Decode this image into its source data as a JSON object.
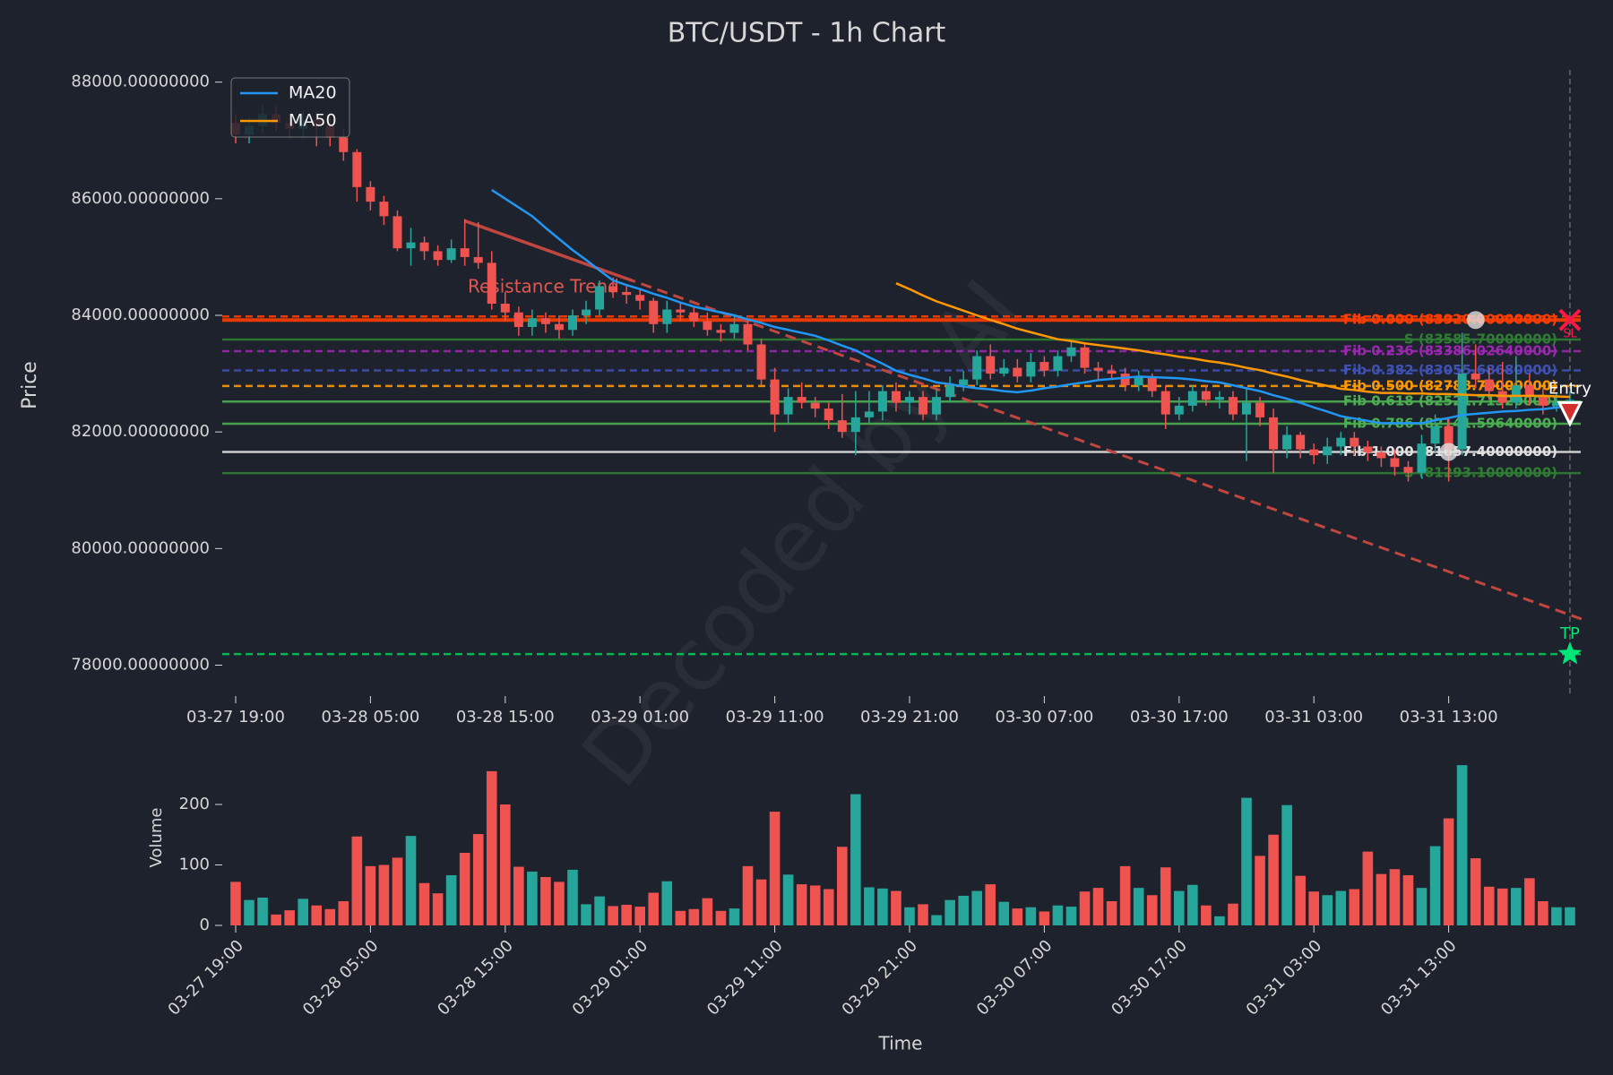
{
  "chart_data": [
    {
      "type": "candlestick",
      "title": "BTC/USDT - 1h Chart",
      "ylabel": "Price",
      "watermark": "Decoded by AI",
      "categories": [
        "03-27 19:00",
        null,
        null,
        null,
        null,
        null,
        null,
        null,
        null,
        null,
        "03-28 05:00",
        null,
        null,
        null,
        null,
        null,
        null,
        null,
        null,
        null,
        "03-28 15:00",
        null,
        null,
        null,
        null,
        null,
        null,
        null,
        null,
        null,
        "03-29 01:00",
        null,
        null,
        null,
        null,
        null,
        null,
        null,
        null,
        null,
        "03-29 11:00",
        null,
        null,
        null,
        null,
        null,
        null,
        null,
        null,
        null,
        "03-29 21:00",
        null,
        null,
        null,
        null,
        null,
        null,
        null,
        null,
        null,
        "03-30 07:00",
        null,
        null,
        null,
        null,
        null,
        null,
        null,
        null,
        null,
        "03-30 17:00",
        null,
        null,
        null,
        null,
        null,
        null,
        null,
        null,
        null,
        "03-31 03:00",
        null,
        null,
        null,
        null,
        null,
        null,
        null,
        null,
        null,
        "03-31 13:00",
        null,
        null,
        null,
        null,
        null,
        null,
        null,
        null,
        null
      ],
      "open": [
        87300,
        87100,
        87250,
        87450,
        87300,
        87200,
        87350,
        87250,
        87050,
        86800,
        86200,
        85950,
        85700,
        85150,
        85250,
        85100,
        84950,
        85150,
        85000,
        84900,
        84200,
        84050,
        83800,
        83950,
        83850,
        83750,
        84000,
        84100,
        84500,
        84400,
        84350,
        84250,
        83850,
        84100,
        84050,
        83900,
        83750,
        83700,
        83850,
        83500,
        82900,
        82300,
        82600,
        82500,
        82400,
        82200,
        82000,
        82250,
        82350,
        82700,
        82500,
        82600,
        82300,
        82600,
        82800,
        82900,
        83300,
        83000,
        83100,
        82950,
        83200,
        83050,
        83300,
        83450,
        83100,
        83050,
        83000,
        82800,
        82950,
        82700,
        82300,
        82450,
        82700,
        82550,
        82600,
        82300,
        82500,
        82250,
        81700,
        81950,
        81700,
        81600,
        81750,
        81900,
        81750,
        81650,
        81550,
        81400,
        81300,
        81800,
        82100,
        81700,
        83000,
        82900,
        82700,
        82500,
        82800,
        82600,
        82450,
        82500
      ],
      "high": [
        87450,
        87400,
        87600,
        87600,
        87450,
        87500,
        87500,
        87400,
        87200,
        86850,
        86300,
        86050,
        85800,
        85500,
        85350,
        85200,
        85300,
        85650,
        85600,
        85100,
        84400,
        84150,
        84100,
        84050,
        84000,
        84100,
        84250,
        84600,
        84650,
        84500,
        84450,
        84300,
        84250,
        84200,
        84150,
        84050,
        83850,
        84000,
        83950,
        83600,
        83100,
        82750,
        82850,
        82600,
        82500,
        82650,
        82700,
        82700,
        82800,
        82850,
        82700,
        82700,
        82750,
        82950,
        83050,
        83400,
        83500,
        83250,
        83250,
        83350,
        83300,
        83400,
        83550,
        83500,
        83200,
        83150,
        83100,
        83050,
        83000,
        82800,
        82600,
        82800,
        82800,
        82700,
        82700,
        82750,
        82600,
        82400,
        82100,
        82000,
        81800,
        81900,
        82000,
        82000,
        81850,
        81750,
        81700,
        81500,
        81950,
        82300,
        82250,
        83700,
        83500,
        83100,
        83200,
        83300,
        83000,
        82750,
        82650,
        82700
      ],
      "low": [
        86950,
        86950,
        87100,
        87150,
        87050,
        87050,
        86900,
        86900,
        86650,
        85950,
        85800,
        85550,
        85100,
        84850,
        84950,
        84850,
        84900,
        84850,
        84800,
        84100,
        83900,
        83650,
        83650,
        83700,
        83600,
        83650,
        83850,
        84000,
        84300,
        84200,
        84100,
        83700,
        83700,
        83900,
        83800,
        83650,
        83550,
        83600,
        83400,
        82800,
        82000,
        82150,
        82400,
        82250,
        82050,
        81900,
        81600,
        82150,
        82200,
        82350,
        82300,
        82200,
        82200,
        82500,
        82700,
        82800,
        82900,
        82950,
        82850,
        82850,
        82950,
        82950,
        83200,
        83000,
        82900,
        82900,
        82700,
        82700,
        82600,
        82050,
        82200,
        82350,
        82450,
        82400,
        82200,
        81500,
        82100,
        81300,
        81550,
        81550,
        81450,
        81450,
        81600,
        81600,
        81500,
        81400,
        81250,
        81150,
        81200,
        81650,
        81150,
        81600,
        82750,
        82550,
        82400,
        82400,
        82450,
        82300,
        82350,
        82400
      ],
      "close": [
        87100,
        87250,
        87450,
        87300,
        87200,
        87350,
        87250,
        87050,
        86800,
        86200,
        85950,
        85700,
        85150,
        85250,
        85100,
        84950,
        85150,
        85000,
        84900,
        84200,
        84050,
        83800,
        83950,
        83850,
        83750,
        84000,
        84100,
        84500,
        84400,
        84350,
        84250,
        83850,
        84100,
        84050,
        83900,
        83750,
        83700,
        83850,
        83500,
        82900,
        82300,
        82600,
        82500,
        82400,
        82200,
        82000,
        82250,
        82350,
        82700,
        82500,
        82600,
        82300,
        82600,
        82800,
        82900,
        83300,
        83000,
        83100,
        82950,
        83200,
        83050,
        83300,
        83450,
        83100,
        83050,
        83000,
        82800,
        82950,
        82700,
        82300,
        82450,
        82700,
        82550,
        82600,
        82300,
        82500,
        82250,
        81700,
        81950,
        81700,
        81600,
        81750,
        81900,
        81750,
        81650,
        81550,
        81400,
        81300,
        81800,
        82100,
        81700,
        83000,
        82900,
        82700,
        82500,
        82800,
        82600,
        82450,
        82500,
        82550
      ],
      "up_color": "#26a69a",
      "down_color": "#ef5350",
      "ylim": [
        77470,
        88210
      ],
      "yticks": [
        {
          "value": 78000,
          "label": "78000.00000000"
        },
        {
          "value": 80000,
          "label": "80000.00000000"
        },
        {
          "value": 82000,
          "label": "82000.00000000"
        },
        {
          "value": 84000,
          "label": "84000.00000000"
        },
        {
          "value": 86000,
          "label": "86000.00000000"
        },
        {
          "value": 88000,
          "label": "88000.00000000"
        }
      ],
      "legend": "upper left",
      "series": [
        {
          "name": "MA20",
          "color": "#2196f3",
          "values": [
            null,
            null,
            null,
            null,
            null,
            null,
            null,
            null,
            null,
            null,
            null,
            null,
            null,
            null,
            null,
            null,
            null,
            null,
            null,
            86150,
            86000,
            85850,
            85700,
            85500,
            85310,
            85120,
            84950,
            84770,
            84600,
            84520,
            84450,
            84370,
            84300,
            84220,
            84150,
            84100,
            84050,
            84000,
            83930,
            83870,
            83800,
            83750,
            83700,
            83650,
            83570,
            83480,
            83400,
            83280,
            83170,
            83050,
            82980,
            82920,
            82850,
            82820,
            82780,
            82750,
            82730,
            82700,
            82680,
            82710,
            82750,
            82780,
            82820,
            82850,
            82890,
            82910,
            82930,
            82950,
            82940,
            82930,
            82920,
            82900,
            82870,
            82850,
            82800,
            82750,
            82700,
            82630,
            82570,
            82500,
            82420,
            82350,
            82270,
            82230,
            82190,
            82150,
            82150,
            82150,
            82150,
            82200,
            82240,
            82290,
            82310,
            82330,
            82350,
            82360,
            82380,
            82390,
            82420,
            82440
          ]
        },
        {
          "name": "MA50",
          "color": "#ff9800",
          "values": [
            null,
            null,
            null,
            null,
            null,
            null,
            null,
            null,
            null,
            null,
            null,
            null,
            null,
            null,
            null,
            null,
            null,
            null,
            null,
            null,
            null,
            null,
            null,
            null,
            null,
            null,
            null,
            null,
            null,
            null,
            null,
            null,
            null,
            null,
            null,
            null,
            null,
            null,
            null,
            null,
            null,
            null,
            null,
            null,
            null,
            null,
            null,
            null,
            null,
            84550,
            84450,
            84340,
            84240,
            84160,
            84080,
            84000,
            83920,
            83850,
            83770,
            83710,
            83650,
            83590,
            83560,
            83520,
            83490,
            83460,
            83430,
            83400,
            83360,
            83330,
            83290,
            83260,
            83220,
            83190,
            83150,
            83100,
            83060,
            83000,
            82950,
            82890,
            82840,
            82790,
            82740,
            82720,
            82690,
            82670,
            82670,
            82660,
            82660,
            82650,
            82650,
            82640,
            82630,
            82630,
            82620,
            82620,
            82620,
            82620,
            82610,
            82600
          ]
        }
      ],
      "levels": [
        {
          "value": 83980,
          "color": "#ff3d00",
          "style": "dashed"
        },
        {
          "label": "Fib 0.000 (83920.00000000)",
          "value": 83920,
          "color": "#ff3d00",
          "style": "thick"
        },
        {
          "label": "S (83585.70000000)",
          "value": 83585.7,
          "color": "#2e7d32",
          "style": "solid"
        },
        {
          "label": "Fib 0.236 (83386.02640000)",
          "value": 83386.0264,
          "color": "#9c27b0",
          "style": "dashed"
        },
        {
          "label": "Fib 0.382 (83055.68680000)",
          "value": 83055.6868,
          "color": "#3f51b5",
          "style": "dashed"
        },
        {
          "label": "Fib 0.500 (82788.70000000)",
          "value": 82788.7,
          "color": "#ff9800",
          "style": "dashed"
        },
        {
          "label": "Fib 0.618 (82521.71320000)",
          "value": 82521.7132,
          "color": "#4caf50",
          "style": "solid"
        },
        {
          "label": "Fib 0.786 (82141.59640000)",
          "value": 82141.5964,
          "color": "#4caf50",
          "style": "solid"
        },
        {
          "label": "Fib 1.000 (81657.40000000)",
          "value": 81657.4,
          "color": "#e0e0e0",
          "style": "solid"
        },
        {
          "label": "S (81293.10000000)",
          "value": 81293.1,
          "color": "#2e7d32",
          "style": "solid"
        },
        {
          "value": 78190,
          "color": "#00c853",
          "style": "dashed"
        }
      ],
      "trend": {
        "label": "Resistance Trend",
        "x": [
          17,
          100
        ],
        "values": [
          85620,
          78780
        ],
        "color": "#c0463f"
      },
      "fib_points": [
        {
          "x": 90,
          "value": 81657.4
        },
        {
          "x": 92,
          "value": 83920
        }
      ],
      "markers": [
        {
          "label": "Entry",
          "x": 99,
          "value": 82320,
          "shape": "triangle",
          "color": "#ffffff"
        },
        {
          "label": "SL",
          "x": 99,
          "value": 83920,
          "shape": "x",
          "color": "#ff1744"
        },
        {
          "label": "TP",
          "x": 99,
          "value": 78190,
          "shape": "star",
          "color": "#00e676"
        }
      ]
    },
    {
      "type": "bar",
      "ylabel": "Volume",
      "xlabel": "Time",
      "values": [
        72,
        42,
        46,
        18,
        25,
        44,
        33,
        27,
        40,
        147,
        98,
        100,
        112,
        148,
        70,
        53,
        83,
        120,
        151,
        255,
        200,
        97,
        89,
        80,
        72,
        92,
        35,
        48,
        32,
        34,
        31,
        54,
        73,
        24,
        27,
        45,
        24,
        28,
        98,
        76,
        188,
        84,
        68,
        66,
        60,
        130,
        217,
        63,
        61,
        57,
        30,
        35,
        17,
        42,
        49,
        57,
        68,
        39,
        28,
        30,
        23,
        33,
        31,
        56,
        62,
        40,
        98,
        62,
        50,
        96,
        57,
        67,
        33,
        15,
        36,
        211,
        115,
        150,
        199,
        82,
        56,
        50,
        57,
        60,
        122,
        85,
        93,
        83,
        62,
        131,
        177,
        265,
        111,
        64,
        61,
        62,
        78,
        40,
        30,
        30
      ],
      "ylim": [
        0,
        280
      ],
      "yticks": [
        0,
        100,
        200
      ]
    }
  ]
}
